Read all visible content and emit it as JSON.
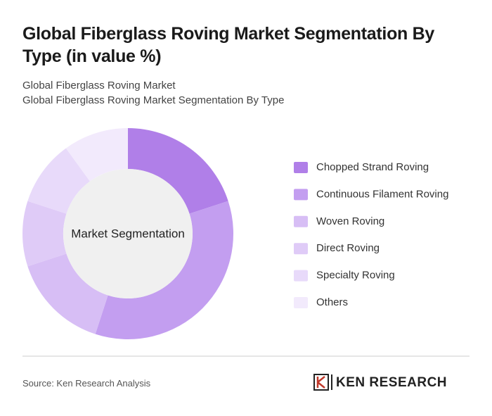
{
  "chart_data": {
    "type": "pie",
    "title": "Global Fiberglass Roving Market Segmentation By Type (in value %)",
    "subtitle": [
      "Global Fiberglass Roving Market",
      "Global Fiberglass Roving Market Segmentation By Type"
    ],
    "center_label": "Market Segmentation",
    "categories": [
      "Chopped Strand Roving",
      "Continuous Filament Roving",
      "Woven Roving",
      "Direct Roving",
      "Specialty Roving",
      "Others"
    ],
    "values": [
      20,
      35,
      15,
      10,
      10,
      10
    ],
    "colors": [
      "#b07fe8",
      "#c39ef0",
      "#d7bef5",
      "#dfcbf7",
      "#e8dafa",
      "#f2eafc"
    ],
    "source": "Source: Ken Research Analysis"
  },
  "logo": {
    "text": "KEN RESEARCH"
  }
}
